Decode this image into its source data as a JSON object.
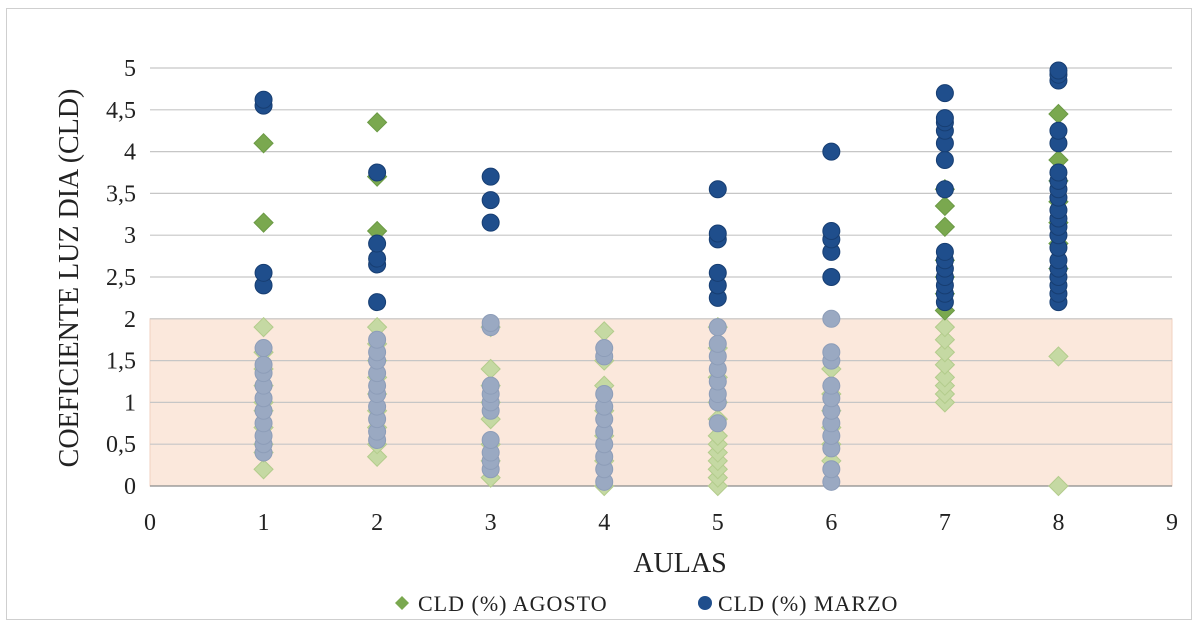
{
  "chart_data": {
    "type": "scatter",
    "title": "",
    "xlabel": "AULAS",
    "ylabel": "COEFICIENTE LUZ DIA (CLD)",
    "xlim": [
      0,
      9
    ],
    "ylim": [
      0,
      5
    ],
    "x_ticks": [
      "0",
      "1",
      "2",
      "3",
      "4",
      "5",
      "6",
      "7",
      "8",
      "9"
    ],
    "y_ticks": [
      "0",
      "0,5",
      "1",
      "1,5",
      "2",
      "2,5",
      "3",
      "3,5",
      "4",
      "4,5",
      "5"
    ],
    "grid": "horizontal",
    "legend_position": "bottom",
    "shaded_band": {
      "y_from": 0,
      "y_to": 2,
      "color": "#fbe8dc"
    },
    "series": [
      {
        "name": "CLD (%) AGOSTO",
        "marker": "diamond",
        "color": "#7aa84f",
        "points": [
          [
            1,
            0.2
          ],
          [
            1,
            0.4
          ],
          [
            1,
            0.5
          ],
          [
            1,
            0.7
          ],
          [
            1,
            0.9
          ],
          [
            1,
            1.0
          ],
          [
            1,
            1.2
          ],
          [
            1,
            1.4
          ],
          [
            1,
            1.6
          ],
          [
            1,
            1.9
          ],
          [
            1,
            3.15
          ],
          [
            1,
            4.1
          ],
          [
            2,
            0.35
          ],
          [
            2,
            0.5
          ],
          [
            2,
            0.7
          ],
          [
            2,
            0.9
          ],
          [
            2,
            1.1
          ],
          [
            2,
            1.3
          ],
          [
            2,
            1.5
          ],
          [
            2,
            1.7
          ],
          [
            2,
            1.9
          ],
          [
            2,
            3.05
          ],
          [
            2,
            3.7
          ],
          [
            2,
            4.35
          ],
          [
            3,
            0.1
          ],
          [
            3,
            0.3
          ],
          [
            3,
            0.5
          ],
          [
            3,
            0.8
          ],
          [
            3,
            1.0
          ],
          [
            3,
            1.2
          ],
          [
            3,
            1.4
          ],
          [
            3,
            1.9
          ],
          [
            4,
            0.0
          ],
          [
            4,
            0.3
          ],
          [
            4,
            0.6
          ],
          [
            4,
            0.9
          ],
          [
            4,
            1.2
          ],
          [
            4,
            1.5
          ],
          [
            4,
            1.85
          ],
          [
            5,
            0.0
          ],
          [
            5,
            0.1
          ],
          [
            5,
            0.2
          ],
          [
            5,
            0.3
          ],
          [
            5,
            0.4
          ],
          [
            5,
            0.5
          ],
          [
            5,
            0.6
          ],
          [
            5,
            0.8
          ],
          [
            5,
            1.0
          ],
          [
            5,
            1.3
          ],
          [
            5,
            1.65
          ],
          [
            5,
            1.9
          ],
          [
            6,
            0.3
          ],
          [
            6,
            0.5
          ],
          [
            6,
            0.7
          ],
          [
            6,
            0.9
          ],
          [
            6,
            1.1
          ],
          [
            6,
            1.4
          ],
          [
            7,
            1.0
          ],
          [
            7,
            1.1
          ],
          [
            7,
            1.2
          ],
          [
            7,
            1.3
          ],
          [
            7,
            1.45
          ],
          [
            7,
            1.6
          ],
          [
            7,
            1.75
          ],
          [
            7,
            1.9
          ],
          [
            7,
            2.1
          ],
          [
            7,
            2.3
          ],
          [
            7,
            2.5
          ],
          [
            7,
            2.7
          ],
          [
            7,
            3.1
          ],
          [
            7,
            3.35
          ],
          [
            7,
            3.55
          ],
          [
            8,
            0.0
          ],
          [
            8,
            1.55
          ],
          [
            8,
            2.6
          ],
          [
            8,
            2.9
          ],
          [
            8,
            3.15
          ],
          [
            8,
            3.4
          ],
          [
            8,
            3.65
          ],
          [
            8,
            3.9
          ],
          [
            8,
            4.45
          ]
        ]
      },
      {
        "name": "CLD (%) MARZO",
        "marker": "circle",
        "color": "#1f4e8c",
        "fade_color": "#9aa9c2",
        "points": [
          [
            1,
            0.4
          ],
          [
            1,
            0.5
          ],
          [
            1,
            0.6
          ],
          [
            1,
            0.75
          ],
          [
            1,
            0.9
          ],
          [
            1,
            1.05
          ],
          [
            1,
            1.2
          ],
          [
            1,
            1.35
          ],
          [
            1,
            1.45
          ],
          [
            1,
            1.65
          ],
          [
            1,
            2.4
          ],
          [
            1,
            2.55
          ],
          [
            1,
            4.55
          ],
          [
            1,
            4.62
          ],
          [
            2,
            0.55
          ],
          [
            2,
            0.65
          ],
          [
            2,
            0.8
          ],
          [
            2,
            0.95
          ],
          [
            2,
            1.1
          ],
          [
            2,
            1.2
          ],
          [
            2,
            1.35
          ],
          [
            2,
            1.5
          ],
          [
            2,
            1.6
          ],
          [
            2,
            1.75
          ],
          [
            2,
            2.2
          ],
          [
            2,
            2.65
          ],
          [
            2,
            2.72
          ],
          [
            2,
            2.9
          ],
          [
            2,
            3.75
          ],
          [
            3,
            0.2
          ],
          [
            3,
            0.3
          ],
          [
            3,
            0.4
          ],
          [
            3,
            0.55
          ],
          [
            3,
            0.9
          ],
          [
            3,
            1.0
          ],
          [
            3,
            1.1
          ],
          [
            3,
            1.2
          ],
          [
            3,
            1.9
          ],
          [
            3,
            1.95
          ],
          [
            3,
            3.15
          ],
          [
            3,
            3.42
          ],
          [
            3,
            3.7
          ],
          [
            4,
            0.05
          ],
          [
            4,
            0.2
          ],
          [
            4,
            0.35
          ],
          [
            4,
            0.5
          ],
          [
            4,
            0.65
          ],
          [
            4,
            0.8
          ],
          [
            4,
            0.95
          ],
          [
            4,
            1.1
          ],
          [
            4,
            1.55
          ],
          [
            4,
            1.65
          ],
          [
            5,
            0.75
          ],
          [
            5,
            1.0
          ],
          [
            5,
            1.1
          ],
          [
            5,
            1.25
          ],
          [
            5,
            1.4
          ],
          [
            5,
            1.55
          ],
          [
            5,
            1.7
          ],
          [
            5,
            1.9
          ],
          [
            5,
            2.25
          ],
          [
            5,
            2.4
          ],
          [
            5,
            2.55
          ],
          [
            5,
            2.95
          ],
          [
            5,
            3.02
          ],
          [
            5,
            3.55
          ],
          [
            6,
            0.05
          ],
          [
            6,
            0.2
          ],
          [
            6,
            0.45
          ],
          [
            6,
            0.6
          ],
          [
            6,
            0.75
          ],
          [
            6,
            0.9
          ],
          [
            6,
            1.05
          ],
          [
            6,
            1.2
          ],
          [
            6,
            1.5
          ],
          [
            6,
            1.6
          ],
          [
            6,
            2.0
          ],
          [
            6,
            2.5
          ],
          [
            6,
            2.8
          ],
          [
            6,
            2.95
          ],
          [
            6,
            3.05
          ],
          [
            6,
            4.0
          ],
          [
            7,
            2.2
          ],
          [
            7,
            2.3
          ],
          [
            7,
            2.4
          ],
          [
            7,
            2.5
          ],
          [
            7,
            2.6
          ],
          [
            7,
            2.7
          ],
          [
            7,
            2.8
          ],
          [
            7,
            3.55
          ],
          [
            7,
            3.9
          ],
          [
            7,
            4.1
          ],
          [
            7,
            4.25
          ],
          [
            7,
            4.35
          ],
          [
            7,
            4.4
          ],
          [
            7,
            4.7
          ],
          [
            8,
            2.2
          ],
          [
            8,
            2.3
          ],
          [
            8,
            2.4
          ],
          [
            8,
            2.5
          ],
          [
            8,
            2.6
          ],
          [
            8,
            2.7
          ],
          [
            8,
            2.85
          ],
          [
            8,
            3.0
          ],
          [
            8,
            3.1
          ],
          [
            8,
            3.2
          ],
          [
            8,
            3.3
          ],
          [
            8,
            3.45
          ],
          [
            8,
            3.55
          ],
          [
            8,
            3.65
          ],
          [
            8,
            3.75
          ],
          [
            8,
            4.1
          ],
          [
            8,
            4.25
          ],
          [
            8,
            4.85
          ],
          [
            8,
            4.92
          ],
          [
            8,
            4.97
          ]
        ]
      }
    ]
  }
}
